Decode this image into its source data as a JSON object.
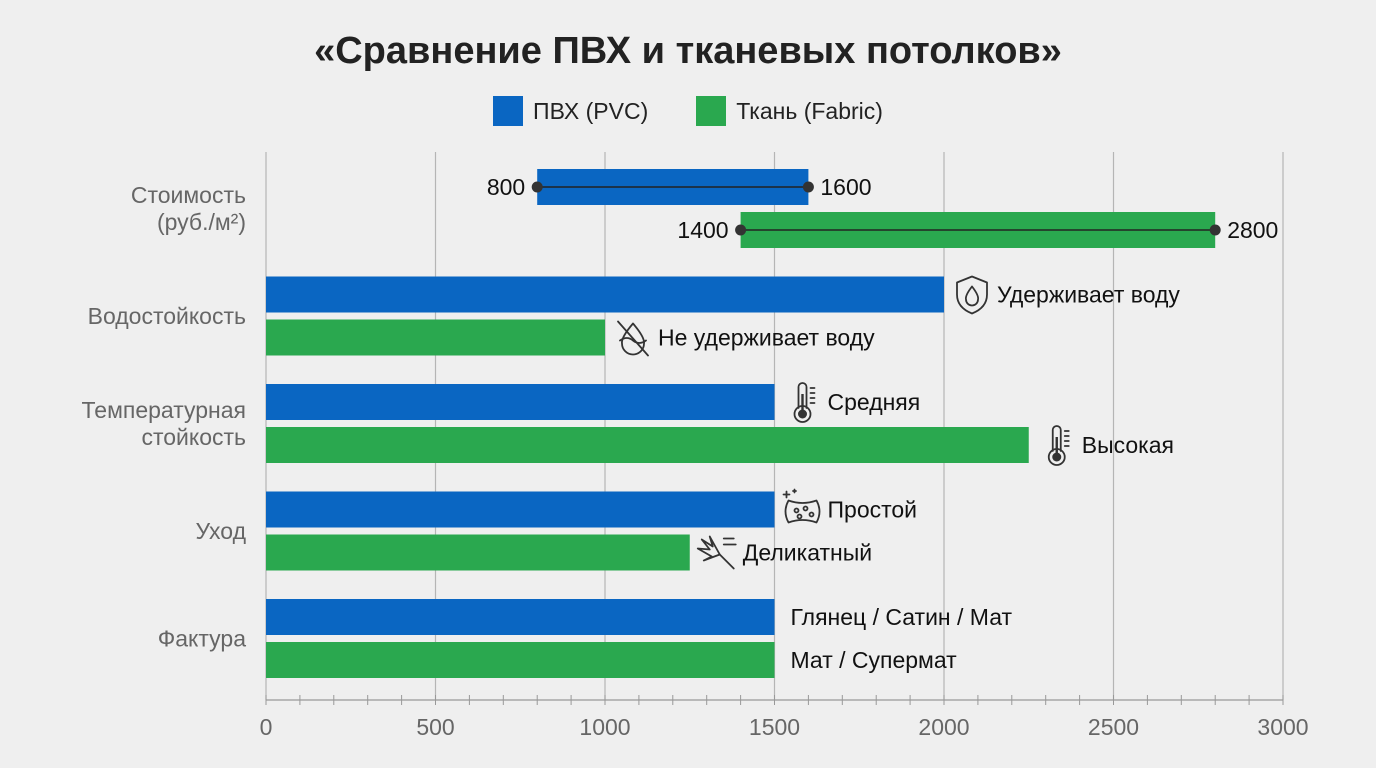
{
  "title": "«Сравнение ПВХ и тканевых потолков»",
  "legend": {
    "pvc": "ПВХ (PVC)",
    "fabric": "Ткань (Fabric)"
  },
  "colors": {
    "pvc": "#0a66c2",
    "fabric": "#2aa84f"
  },
  "chart_data": {
    "type": "bar",
    "orientation": "horizontal",
    "title": "«Сравнение ПВХ и тканевых потолков»",
    "xlim": [
      0,
      3000
    ],
    "xticks": [
      0,
      500,
      1000,
      1500,
      2000,
      2500,
      3000
    ],
    "grid": true,
    "legend_position": "top-center",
    "series": [
      {
        "name": "ПВХ (PVC)",
        "key": "pvc"
      },
      {
        "name": "Ткань (Fabric)",
        "key": "fabric"
      }
    ],
    "categories": [
      {
        "label": [
          "Стоимость",
          "(руб./м²)"
        ],
        "pvc": {
          "range": [
            800,
            1600
          ],
          "start_label": "800",
          "end_label": "1600"
        },
        "fabric": {
          "range": [
            1400,
            2800
          ],
          "start_label": "1400",
          "end_label": "2800"
        }
      },
      {
        "label": [
          "Водостойкость"
        ],
        "pvc": {
          "value": 2000,
          "annotation": "Удерживает воду",
          "icon": "shield-drop-icon"
        },
        "fabric": {
          "value": 1000,
          "annotation": "Не удерживает воду",
          "icon": "no-water-icon"
        }
      },
      {
        "label": [
          "Температурная",
          "стойкость"
        ],
        "pvc": {
          "value": 1500,
          "annotation": "Средняя",
          "icon": "thermometer-icon"
        },
        "fabric": {
          "value": 2250,
          "annotation": "Высокая",
          "icon": "thermometer-icon"
        }
      },
      {
        "label": [
          "Уход"
        ],
        "pvc": {
          "value": 1500,
          "annotation": "Простой",
          "icon": "sponge-icon"
        },
        "fabric": {
          "value": 1250,
          "annotation": "Деликатный",
          "icon": "duster-icon"
        }
      },
      {
        "label": [
          "Фактура"
        ],
        "pvc": {
          "value": 1500,
          "annotation": "Глянец / Сатин / Мат"
        },
        "fabric": {
          "value": 1500,
          "annotation": "Мат / Супермат"
        }
      }
    ]
  }
}
